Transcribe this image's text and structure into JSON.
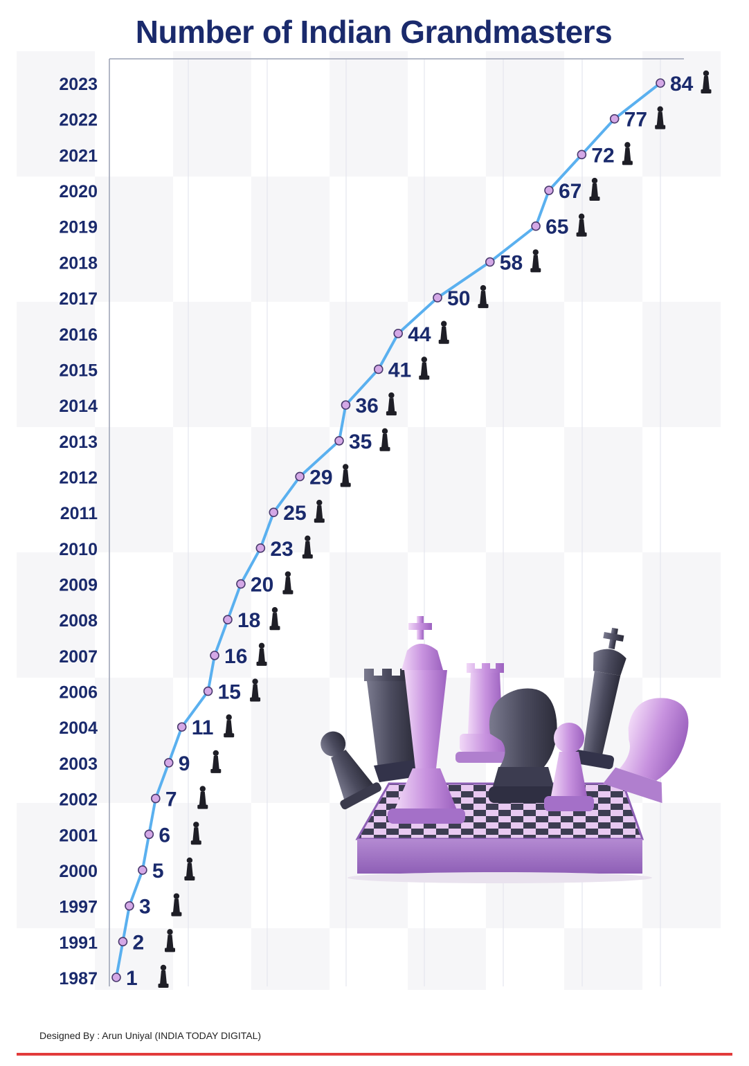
{
  "chart_data": {
    "type": "line",
    "title": "Number of Indian Grandmasters",
    "categories": [
      "1987",
      "1991",
      "1997",
      "2000",
      "2001",
      "2002",
      "2003",
      "2004",
      "2006",
      "2007",
      "2008",
      "2009",
      "2010",
      "2011",
      "2012",
      "2013",
      "2014",
      "2015",
      "2016",
      "2017",
      "2018",
      "2019",
      "2020",
      "2021",
      "2022",
      "2023"
    ],
    "series": [
      {
        "values": [
          1,
          2,
          3,
          5,
          6,
          7,
          9,
          11,
          15,
          16,
          18,
          20,
          23,
          25,
          29,
          35,
          36,
          41,
          44,
          50,
          58,
          65,
          67,
          72,
          77,
          84
        ]
      }
    ],
    "xlim": [
      0,
      90
    ],
    "grid": true,
    "orientation": "years-on-vertical-axis",
    "data_labels": true
  },
  "credit": "Designed By : Arun Uniyal (INDIA TODAY DIGITAL)",
  "colors": {
    "title": "#1a2a6c",
    "line": "#5ab0ef",
    "marker_fill": "#d4a8e6",
    "marker_stroke": "#4a3a6e",
    "pawn_icon": "#1e1e26",
    "bottom_rule": "#e23b3b",
    "checker_shade": "#f6f6f8",
    "grid": "#e4e6ee"
  },
  "icons": {
    "data_label_marker": "chess-pawn-icon",
    "illustration": "chess-pieces-on-board-illustration"
  }
}
